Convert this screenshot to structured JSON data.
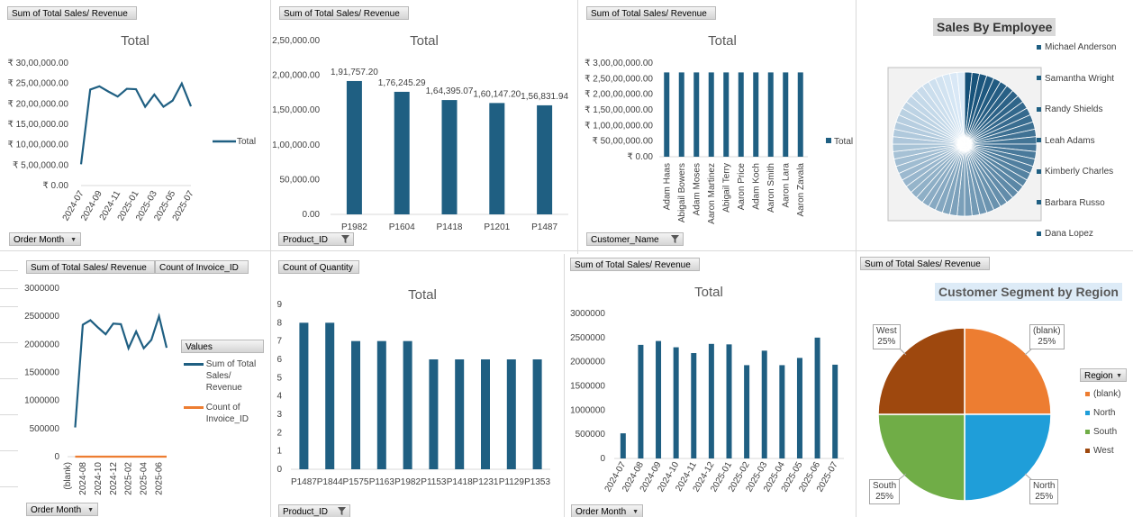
{
  "colors": {
    "primary": "#1f5f82",
    "orange": "#ed7d31",
    "green": "#70ad47",
    "blue": "#1f9ed9",
    "brown": "#9e480e"
  },
  "p1": {
    "field": "Sum of Total Sales/ Revenue",
    "axis_field": "Order Month",
    "legend": "Total",
    "chart_data": {
      "type": "line",
      "title": "Total",
      "x": [
        "2024-07",
        "2024-08",
        "2024-09",
        "2024-10",
        "2024-11",
        "2024-12",
        "2025-01",
        "2025-02",
        "2025-03",
        "2025-04",
        "2025-05",
        "2025-06",
        "2025-07"
      ],
      "x_ticks": [
        "2024-07",
        "2024-09",
        "2024-11",
        "2025-01",
        "2025-03",
        "2025-05",
        "2025-07"
      ],
      "values": [
        520000,
        2350000,
        2430000,
        2300000,
        2180000,
        2370000,
        2360000,
        1930000,
        2230000,
        1930000,
        2080000,
        2500000,
        1940000
      ],
      "ylim": [
        0,
        3000000
      ],
      "y_ticks": [
        "₹ 0.00",
        "₹ 5,00,000.00",
        "₹ 10,00,000.00",
        "₹ 15,00,000.00",
        "₹ 20,00,000.00",
        "₹ 25,00,000.00",
        "₹ 30,00,000.00"
      ]
    }
  },
  "p2": {
    "field": "Sum of Total Sales/ Revenue",
    "axis_field": "Product_ID",
    "chart_data": {
      "type": "bar",
      "title": "Total",
      "categories": [
        "P1982",
        "P1604",
        "P1418",
        "P1201",
        "P1487"
      ],
      "values": [
        191757.2,
        176245.29,
        164395.07,
        160147.2,
        156831.94
      ],
      "data_labels": [
        "1,91,757.20",
        "1,76,245.29",
        "1,64,395.07",
        "1,60,147.20",
        "1,56,831.94"
      ],
      "ylim": [
        0,
        250000
      ],
      "y_ticks": [
        "0.00",
        "50,000.00",
        "1,00,000.00",
        "1,50,000.00",
        "2,00,000.00",
        "2,50,000.00"
      ]
    }
  },
  "p3": {
    "field": "Sum of Total Sales/ Revenue",
    "axis_field": "Customer_Name",
    "legend": "Total",
    "chart_data": {
      "type": "bar",
      "title": "Total",
      "categories": [
        "Adam Haas",
        "Abigail Bowers",
        "Adam Moses",
        "Aaron Martinez",
        "Abigail Terry",
        "Aaron Price",
        "Adam Koch",
        "Aaron Smith",
        "Aaron Lara",
        "Aaron Zavala"
      ],
      "values": [
        27000000,
        27000000,
        27000000,
        27000000,
        27000000,
        27000000,
        27000000,
        27000000,
        27000000,
        27000000
      ],
      "ylim": [
        0,
        30000000
      ],
      "y_ticks": [
        "₹ 0.00",
        "₹ 50,00,000.00",
        "₹ 1,00,00,000.00",
        "₹ 1,50,00,000.00",
        "₹ 2,00,00,000.00",
        "₹ 2,50,00,000.00",
        "₹ 3,00,00,000.00"
      ]
    }
  },
  "p4": {
    "title": "Sales By Employee",
    "legend": [
      "Michael Anderson",
      "Samantha Wright",
      "Randy Shields",
      "Leah Adams",
      "Kimberly Charles",
      "Barbara Russo",
      "Dana Lopez"
    ],
    "chart_data": {
      "type": "pie",
      "title": "Sales By Employee",
      "slice_count": 60,
      "labels": [
        "Michael Anderson",
        "Samantha Wright",
        "Randy Shields",
        "Leah Adams",
        "Kimberly Charles",
        "Barbara Russo",
        "Dana Lopez"
      ]
    }
  },
  "p5": {
    "field1": "Sum of Total Sales/ Revenue",
    "field2": "Count of Invoice_ID",
    "axis_field": "Order Month",
    "legend_title": "Values",
    "legend1": [
      "Sum of Total",
      "Sales/",
      "Revenue"
    ],
    "legend2": [
      "Count of",
      "Invoice_ID"
    ],
    "chart_data": {
      "type": "line",
      "x": [
        "(blank)",
        "2024-07",
        "2024-08",
        "2024-09",
        "2024-10",
        "2024-11",
        "2024-12",
        "2025-01",
        "2025-02",
        "2025-03",
        "2025-04",
        "2025-05",
        "2025-06",
        "2025-07"
      ],
      "x_ticks": [
        "(blank)",
        "2024-08",
        "2024-10",
        "2024-12",
        "2025-02",
        "2025-04",
        "2025-06"
      ],
      "series": [
        {
          "name": "Sum of Total Sales/ Revenue",
          "values": [
            null,
            520000,
            2350000,
            2430000,
            2300000,
            2180000,
            2370000,
            2360000,
            1930000,
            2230000,
            1930000,
            2080000,
            2500000,
            1940000
          ]
        },
        {
          "name": "Count of Invoice_ID",
          "values": [
            null,
            200,
            200,
            200,
            200,
            200,
            200,
            200,
            200,
            200,
            200,
            200,
            200,
            200
          ]
        }
      ],
      "ylim": [
        0,
        3000000
      ],
      "y_ticks": [
        "0",
        "500000",
        "1000000",
        "1500000",
        "2000000",
        "2500000",
        "3000000"
      ]
    }
  },
  "p6": {
    "field": "Count of Quantity",
    "axis_field": "Product_ID",
    "chart_data": {
      "type": "bar",
      "title": "Total",
      "categories": [
        "P1487",
        "P1844",
        "P1575",
        "P1163",
        "P1982",
        "P1153",
        "P1418",
        "P1231",
        "P1129",
        "P1353"
      ],
      "values": [
        8,
        8,
        7,
        7,
        7,
        6,
        6,
        6,
        6,
        6
      ],
      "ylim": [
        0,
        9
      ],
      "y_ticks": [
        "0",
        "1",
        "2",
        "3",
        "4",
        "5",
        "6",
        "7",
        "8",
        "9"
      ]
    }
  },
  "p7": {
    "field": "Sum of Total Sales/ Revenue",
    "axis_field": "Order Month",
    "chart_data": {
      "type": "bar",
      "title": "Total",
      "categories": [
        "2024-07",
        "2024-08",
        "2024-09",
        "2024-10",
        "2024-11",
        "2024-12",
        "2025-01",
        "2025-02",
        "2025-03",
        "2025-04",
        "2025-05",
        "2025-06",
        "2025-07"
      ],
      "values": [
        520000,
        2350000,
        2430000,
        2300000,
        2180000,
        2370000,
        2360000,
        1930000,
        2230000,
        1930000,
        2080000,
        2500000,
        1940000
      ],
      "ylim": [
        0,
        3000000
      ],
      "y_ticks": [
        "0",
        "500000",
        "1000000",
        "1500000",
        "2000000",
        "2500000",
        "3000000"
      ]
    }
  },
  "p8": {
    "field": "Sum of Total Sales/ Revenue",
    "title": "Customer Segment by Region",
    "legend_title": "Region",
    "legend": [
      "(blank)",
      "North",
      "South",
      "West"
    ],
    "labels": {
      "blank": [
        "(blank)",
        "25%"
      ],
      "north": [
        "North",
        "25%"
      ],
      "south": [
        "South",
        "25%"
      ],
      "west": [
        "West",
        "25%"
      ]
    },
    "chart_data": {
      "type": "pie",
      "title": "Customer Segment by Region",
      "labels": [
        "(blank)",
        "North",
        "South",
        "West"
      ],
      "values": [
        25,
        25,
        25,
        25
      ]
    }
  }
}
